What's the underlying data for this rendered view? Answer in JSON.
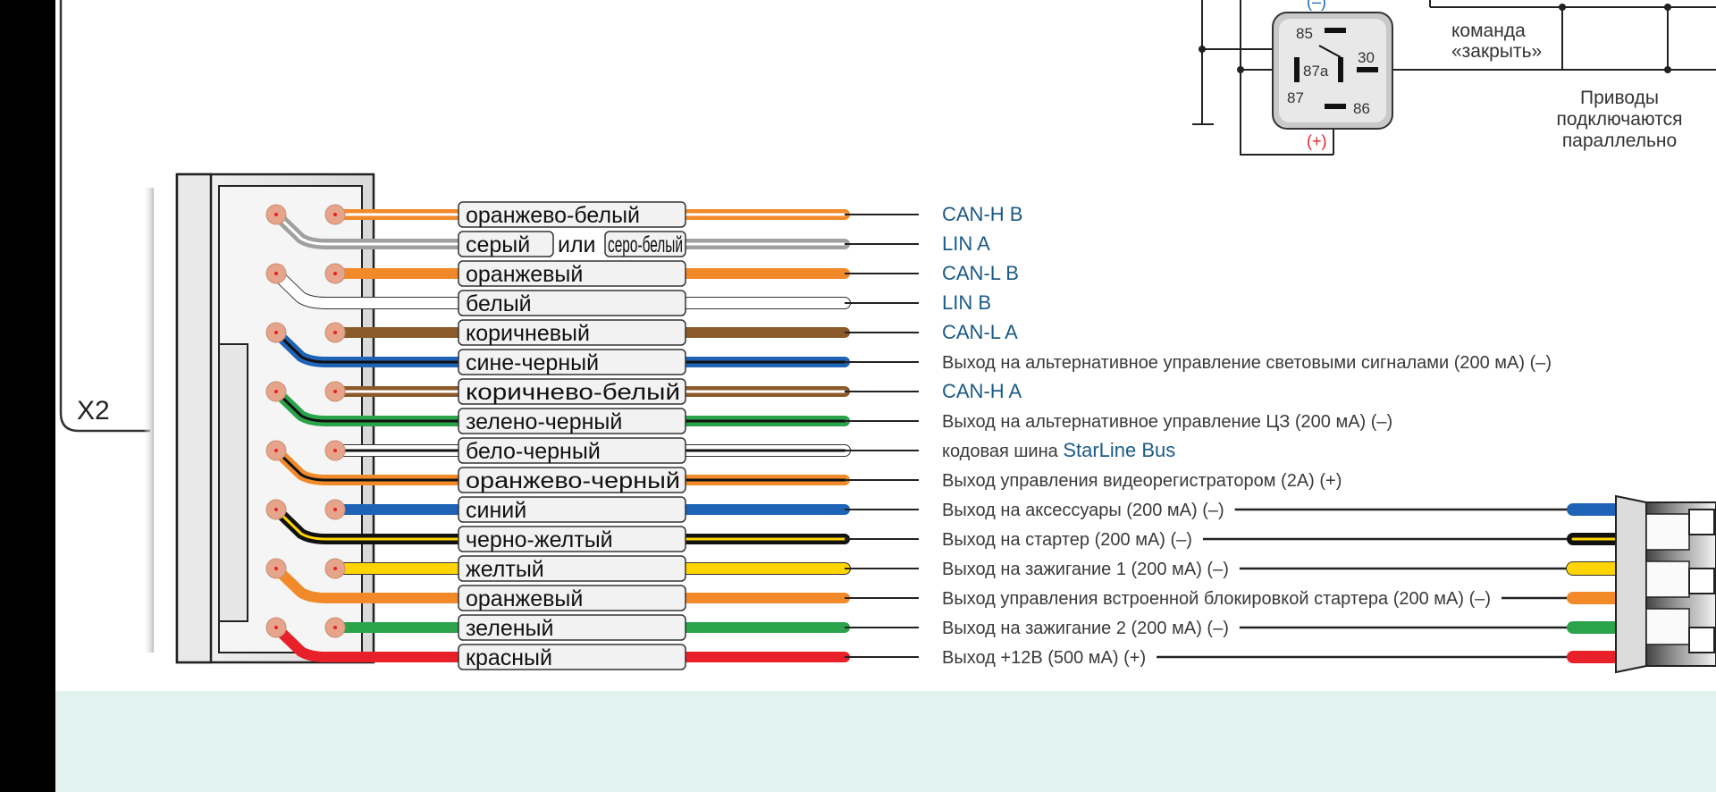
{
  "connector": {
    "label": "X2"
  },
  "wires": [
    {
      "color": "оранжево-белый",
      "desc": "CAN-H B",
      "desc_style": "link",
      "base": "#f28a2a",
      "stripe": "#ffffff",
      "pin": "right"
    },
    {
      "color": "серый",
      "color_alt": "серо-белый",
      "joiner": "или",
      "desc": "LIN A",
      "desc_style": "link",
      "base": "#a0a0a0",
      "stripe": "#ffffff",
      "pin": "left"
    },
    {
      "color": "оранжевый",
      "desc": "CAN-L B",
      "desc_style": "link",
      "base": "#f28a2a",
      "pin": "right"
    },
    {
      "color": "белый",
      "desc": "LIN B",
      "desc_style": "link",
      "base": "#ffffff",
      "pin": "left"
    },
    {
      "color": "коричневый",
      "desc": "CAN-L A",
      "desc_style": "link",
      "base": "#8b5a2b",
      "pin": "right"
    },
    {
      "color": "сине-черный",
      "desc": "Выход на альтернативное управление световыми сигналами (200 мА) (–)",
      "desc_style": "plain",
      "base": "#1f63b6",
      "stripe": "#111111",
      "pin": "left"
    },
    {
      "color": "коричнево-белый",
      "desc": "CAN-H A",
      "desc_style": "link",
      "base": "#8b5a2b",
      "stripe": "#ffffff",
      "pin": "right"
    },
    {
      "color": "зелено-черный",
      "desc": "Выход на альтернативное управление ЦЗ (200 мА) (–)",
      "desc_style": "plain",
      "base": "#2aa34a",
      "stripe": "#111111",
      "pin": "left"
    },
    {
      "color": "бело-черный",
      "desc_prefix": "кодовая шина",
      "desc": "StarLine Bus",
      "desc_style": "mixed",
      "base": "#ffffff",
      "stripe": "#111111",
      "pin": "right"
    },
    {
      "color": "оранжево-черный",
      "desc": "Выход управления видеорегистратором (2А) (+)",
      "desc_style": "plain",
      "base": "#f28a2a",
      "stripe": "#111111",
      "pin": "left"
    },
    {
      "color": "синий",
      "desc": "Выход на аксессуары (200 мА) (–)",
      "desc_style": "plain",
      "base": "#1f63b6",
      "pin": "right",
      "to_plug": true
    },
    {
      "color": "черно-желтый",
      "desc": "Выход на стартер (200 мА) (–)",
      "desc_style": "plain",
      "base": "#111111",
      "stripe": "#ffd400",
      "pin": "left",
      "to_plug": true
    },
    {
      "color": "желтый",
      "desc": "Выход на зажигание 1 (200 мА) (–)",
      "desc_style": "plain",
      "base": "#ffd400",
      "pin": "right",
      "to_plug": true
    },
    {
      "color": "оранжевый",
      "desc": "Выход управления встроенной блокировкой стартера (200 мА) (–)",
      "desc_style": "plain",
      "base": "#f28a2a",
      "pin": "left",
      "to_plug": true
    },
    {
      "color": "зеленый",
      "desc": "Выход на зажигание 2 (200 мА) (–)",
      "desc_style": "plain",
      "base": "#2aa34a",
      "pin": "right",
      "to_plug": true
    },
    {
      "color": "красный",
      "desc": "Выход +12В (500 мА) (+)",
      "desc_style": "plain",
      "base": "#e8202a",
      "pin": "left",
      "to_plug": true
    }
  ],
  "relay": {
    "pins": [
      "85",
      "87a",
      "30",
      "87",
      "86"
    ],
    "minus": "(–)",
    "plus": "(+)",
    "command_line1": "команда",
    "command_line2": "«закрыть»"
  },
  "actuators_note": [
    "Приводы",
    "подключаются",
    "параллельно"
  ],
  "colors": {
    "link_text": "#1b5a86",
    "plain_text": "#3a3a3a",
    "footer_band": "#e2f2ef",
    "left_bar": "#000000",
    "minus_sign": "#1f63b6",
    "plus_sign": "#e8202a"
  }
}
